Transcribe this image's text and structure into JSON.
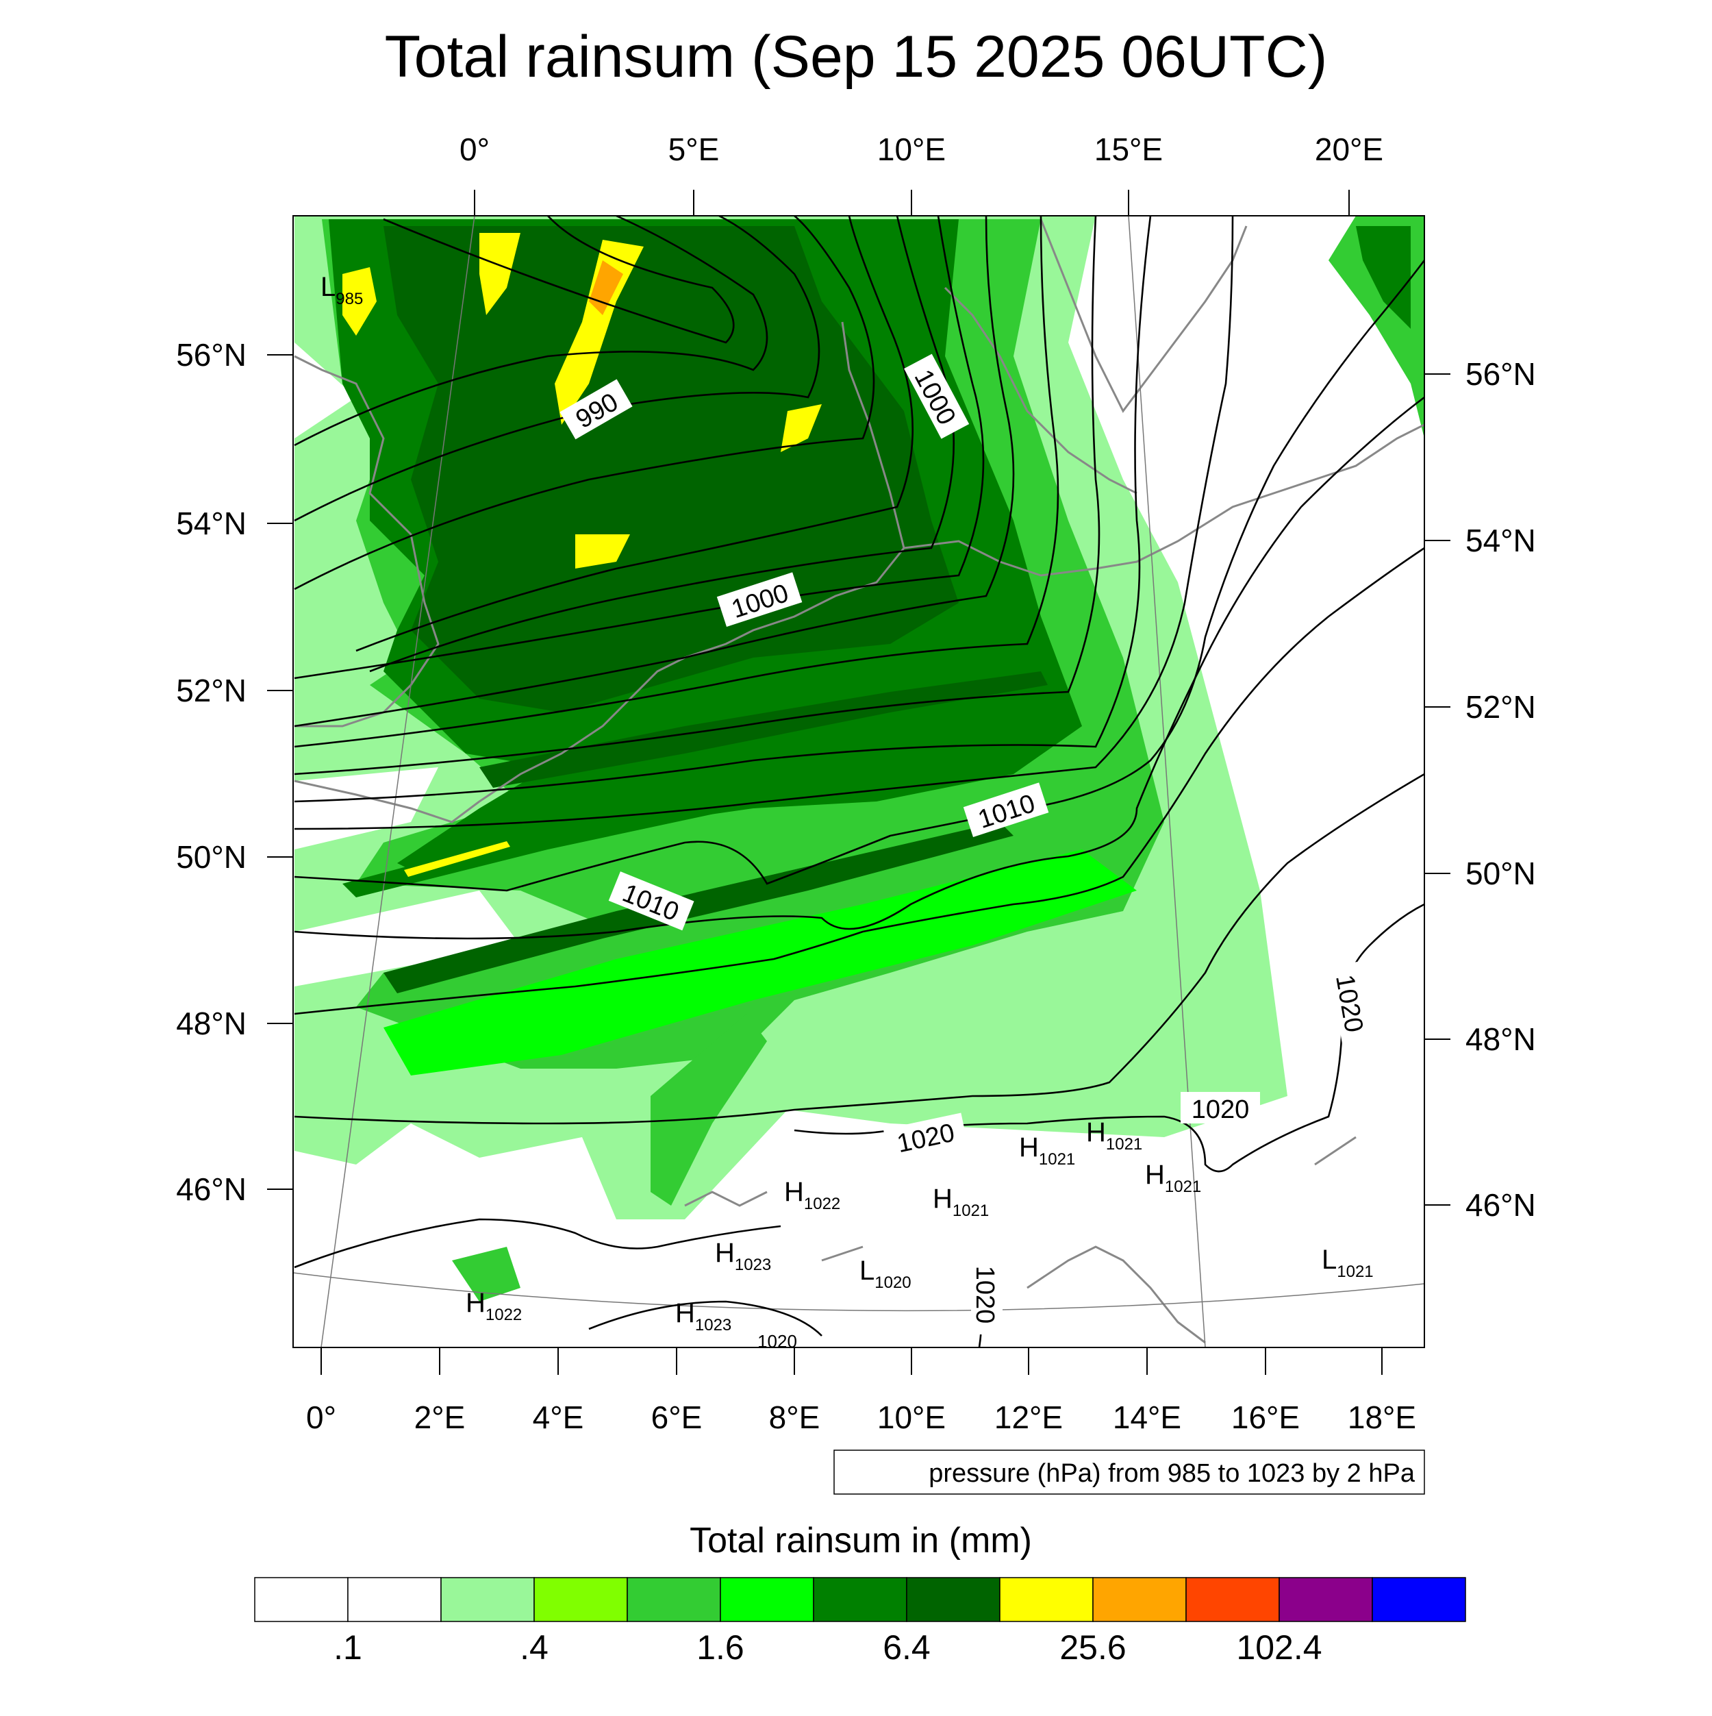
{
  "title": "Total rainsum (Sep 15 2025 06UTC)",
  "top_lon_labels": [
    "0°",
    "5°E",
    "10°E",
    "15°E",
    "20°E"
  ],
  "bottom_lon_labels": [
    "0°",
    "2°E",
    "4°E",
    "6°E",
    "8°E",
    "10°E",
    "12°E",
    "14°E",
    "16°E",
    "18°E"
  ],
  "left_lat_labels": [
    "56°N",
    "54°N",
    "52°N",
    "50°N",
    "48°N",
    "46°N"
  ],
  "right_lat_labels": [
    "56°N",
    "54°N",
    "52°N",
    "50°N",
    "48°N",
    "46°N"
  ],
  "contour_info": "pressure (hPa) from 985 to 1023 by 2 hPa",
  "isobar_labels": [
    "990",
    "1000",
    "1000",
    "1010",
    "1010",
    "1020",
    "1020",
    "1020",
    "1020",
    "1020"
  ],
  "pressure_markers": [
    {
      "type": "L",
      "value": "985"
    },
    {
      "type": "H",
      "value": "1022"
    },
    {
      "type": "H",
      "value": "1023"
    },
    {
      "type": "H",
      "value": "1023"
    },
    {
      "type": "H",
      "value": "1022"
    },
    {
      "type": "H",
      "value": "1021"
    },
    {
      "type": "H",
      "value": "1021"
    },
    {
      "type": "H",
      "value": "1021"
    },
    {
      "type": "H",
      "value": "1021"
    },
    {
      "type": "L",
      "value": "1020"
    },
    {
      "type": "L",
      "value": "1021"
    }
  ],
  "colorbar": {
    "title": "Total rainsum in (mm)",
    "colors": [
      "#ffffff",
      "#ffffff",
      "#99f799",
      "#80ff00",
      "#33cc33",
      "#00ff00",
      "#008000",
      "#006400",
      "#ffff00",
      "#ffa500",
      "#ff4500",
      "#8b008b",
      "#0000ff"
    ],
    "tick_labels": [
      ".1",
      ".4",
      "1.6",
      "6.4",
      "25.6",
      "102.4"
    ]
  },
  "rain_colors": {
    "light": "#99f799",
    "lime": "#80ff00",
    "mid": "#33cc33",
    "bright": "#00ff00",
    "green": "#008000",
    "dark": "#006400",
    "yellow": "#ffff00",
    "orange": "#ffa500"
  }
}
